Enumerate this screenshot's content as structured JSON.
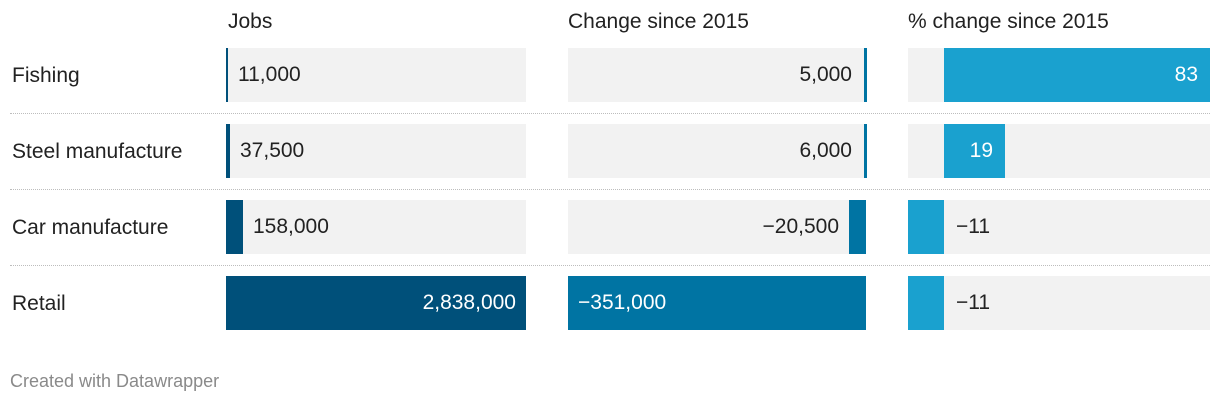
{
  "chart_data": {
    "type": "table",
    "columns": [
      "Jobs",
      "Change since 2015",
      "% change since 2015"
    ],
    "rows": [
      {
        "label": "Fishing",
        "jobs": 11000,
        "jobs_label": "11,000",
        "change": 5000,
        "change_label": "5,000",
        "pct": 83,
        "pct_label": "83"
      },
      {
        "label": "Steel manufacture",
        "jobs": 37500,
        "jobs_label": "37,500",
        "change": 6000,
        "change_label": "6,000",
        "pct": 19,
        "pct_label": "19"
      },
      {
        "label": "Car manufacture",
        "jobs": 158000,
        "jobs_label": "158,000",
        "change": -20500,
        "change_label": "−20,500",
        "pct": -11,
        "pct_label": "−11"
      },
      {
        "label": "Retail",
        "jobs": 2838000,
        "jobs_label": "2,838,000",
        "change": -351000,
        "change_label": "−351,000",
        "pct": -11,
        "pct_label": "−11"
      }
    ],
    "colors": {
      "jobs": "#00507a",
      "change": "#0074a3",
      "pct": "#1aa1cf",
      "cell_background": "#f2f2f2"
    }
  },
  "footer": "Created with Datawrapper"
}
